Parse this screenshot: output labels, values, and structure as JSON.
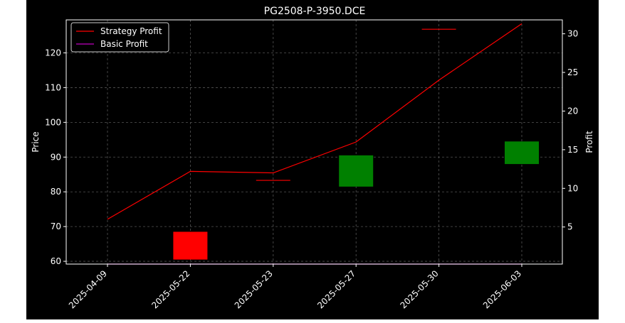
{
  "chart_data": {
    "type": "candlestick",
    "title": "PG2508-P-3950.DCE",
    "xlabel": "",
    "ylabel_left": "Price",
    "ylabel_right": "Profit",
    "categories": [
      "2025-04-09",
      "2025-05-22",
      "2025-05-23",
      "2025-05-27",
      "2025-05-30",
      "2025-06-03"
    ],
    "ylim_left": [
      59.2,
      129.5
    ],
    "ylim_right": [
      0.2,
      31.8
    ],
    "yticks_left": [
      60,
      70,
      80,
      90,
      100,
      110,
      120
    ],
    "yticks_right": [
      5,
      10,
      15,
      20,
      25,
      30
    ],
    "grid": true,
    "legend_position": "upper-left",
    "candles": [
      {
        "date": "2025-05-22",
        "open": 68.5,
        "close": 60.5,
        "color": "#ff0000"
      },
      {
        "date": "2025-05-23",
        "open": 83.3,
        "close": 83.3,
        "color": "#ff0000"
      },
      {
        "date": "2025-05-27",
        "open": 81.5,
        "close": 90.5,
        "color": "#008000"
      },
      {
        "date": "2025-05-30",
        "open": 126.8,
        "close": 126.8,
        "color": "#ff0000"
      },
      {
        "date": "2025-06-03",
        "open": 88.0,
        "close": 94.5,
        "color": "#008000"
      }
    ],
    "series": [
      {
        "name": "Strategy Profit",
        "color": "#ff0000",
        "axis": "right",
        "values": [
          6.0,
          12.2,
          12.0,
          16.0,
          24.0,
          31.3
        ]
      },
      {
        "name": "Basic Profit",
        "color": "#bf00bf",
        "axis": "right",
        "values": [
          0.2,
          0.2,
          0.2,
          0.2,
          0.2,
          0.2
        ]
      }
    ]
  }
}
